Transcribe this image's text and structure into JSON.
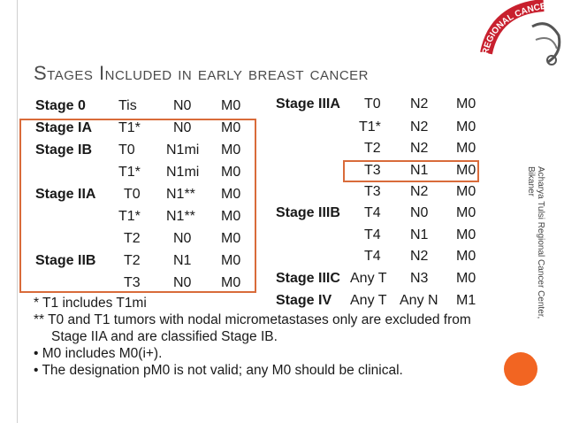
{
  "title": "Stages Included  in early breast cancer",
  "left_table": [
    {
      "stage": "Stage 0",
      "t": "Tis",
      "n": "N0",
      "m": "M0"
    },
    {
      "stage": "Stage IA",
      "t": "T1*",
      "n": "N0",
      "m": "M0"
    },
    {
      "stage": "Stage IB",
      "t": "T0",
      "n": "N1mi",
      "m": "M0"
    },
    {
      "stage": "",
      "t": "T1*",
      "n": "N1mi",
      "m": "M0"
    },
    {
      "stage": "Stage IIA",
      "t": "T0",
      "n": "N1**",
      "m": "M0"
    },
    {
      "stage": "",
      "t": "T1*",
      "n": "N1**",
      "m": "M0"
    },
    {
      "stage": "",
      "t": "T2",
      "n": "N0",
      "m": "M0"
    },
    {
      "stage": "Stage IIB",
      "t": "T2",
      "n": "N1",
      "m": "M0"
    },
    {
      "stage": "",
      "t": "T3",
      "n": "N0",
      "m": "M0"
    }
  ],
  "right_table": [
    {
      "stage": "Stage IIIA",
      "t": "T0",
      "n": "N2",
      "m": "M0"
    },
    {
      "stage": "",
      "t": "T1*",
      "n": "N2",
      "m": "M0"
    },
    {
      "stage": "",
      "t": "T2",
      "n": "N2",
      "m": "M0"
    },
    {
      "stage": "",
      "t": "T3",
      "n": "N1",
      "m": "M0"
    },
    {
      "stage": "",
      "t": "T3",
      "n": "N2",
      "m": "M0"
    },
    {
      "stage": "Stage IIIB",
      "t": "T4",
      "n": "N0",
      "m": "M0"
    },
    {
      "stage": "",
      "t": "T4",
      "n": "N1",
      "m": "M0"
    },
    {
      "stage": "",
      "t": "T4",
      "n": "N2",
      "m": "M0"
    },
    {
      "stage": "Stage IIIC",
      "t": "Any T",
      "n": "N3",
      "m": "M0"
    },
    {
      "stage": "Stage IV",
      "t": "Any T",
      "n": "Any N",
      "m": "M1"
    }
  ],
  "notes": {
    "n1": "* T1 includes T1mi",
    "n2a": "** T0 and T1 tumors with nodal micrometastases only are excluded from",
    "n2b": "Stage IIA and are classified Stage IB.",
    "n3": "• M0 includes M0(i+).",
    "n4": "• The designation pM0 is not valid; any M0 should be clinical."
  },
  "side_text": "Acharya Tulsi Regional Cancer Center, Bikaner",
  "logo_text": "REGIONAL CANCER TREA",
  "colors": {
    "accent": "#f26522",
    "box": "#d96b3a",
    "logo_red": "#c8202e"
  }
}
